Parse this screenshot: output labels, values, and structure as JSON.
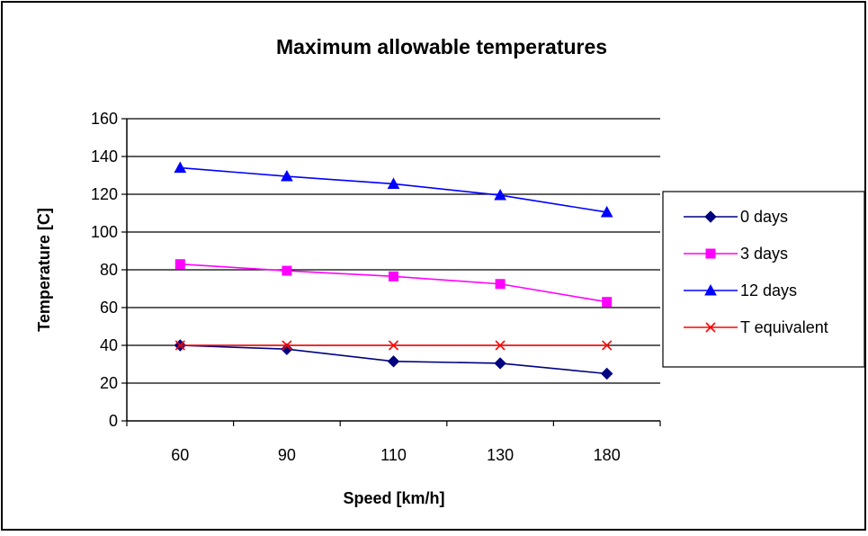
{
  "chart_data": {
    "type": "line",
    "title": "Maximum allowable temperatures",
    "xlabel": "Speed [km/h]",
    "ylabel": "Temperature [C]",
    "categories": [
      "60",
      "90",
      "110",
      "130",
      "180"
    ],
    "ylim": [
      0,
      160
    ],
    "yticks": [
      0,
      20,
      40,
      60,
      80,
      100,
      120,
      140,
      160
    ],
    "grid": true,
    "legend_position": "right",
    "series": [
      {
        "name": "0 days",
        "color": "#000080",
        "marker": "diamond",
        "values": [
          40,
          38,
          31.5,
          30.5,
          25
        ]
      },
      {
        "name": "3 days",
        "color": "#ff00ff",
        "marker": "square",
        "values": [
          83,
          79.5,
          76.5,
          72.5,
          63
        ]
      },
      {
        "name": "12 days",
        "color": "#0000ff",
        "marker": "triangle",
        "values": [
          134,
          129.5,
          125.5,
          119.5,
          110.5
        ]
      },
      {
        "name": "T equivalent",
        "color": "#ff0000",
        "marker": "x",
        "values": [
          40,
          40,
          40,
          40,
          40
        ]
      }
    ]
  }
}
